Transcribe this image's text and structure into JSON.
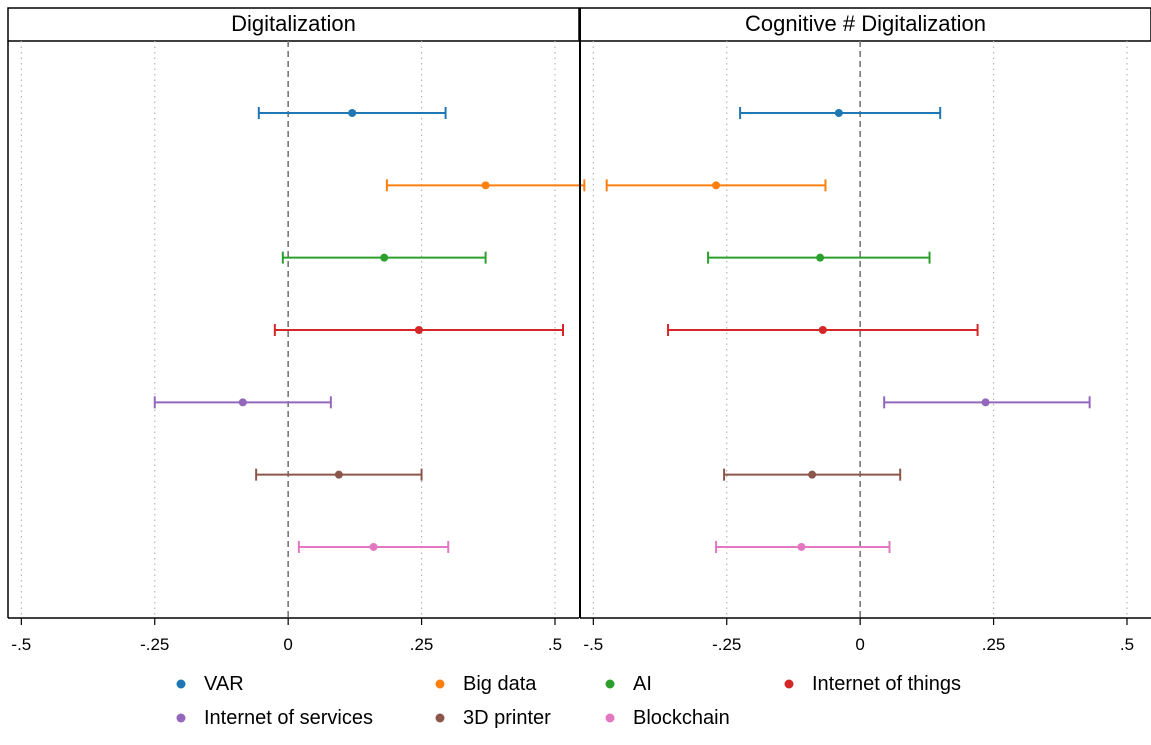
{
  "chart_data": {
    "type": "scatter",
    "subtype": "coefficient-plot-with-confidence-intervals",
    "orientation": "horizontal",
    "x_ticks": [
      -0.5,
      -0.25,
      0,
      0.25,
      0.5
    ],
    "x_tick_labels": [
      "-.5",
      "-.25",
      "0",
      ".25",
      ".5"
    ],
    "xlim": [
      -0.525,
      0.545
    ],
    "reference_line": 0,
    "grid": "vertical-dotted",
    "legend_position": "bottom",
    "legend": [
      {
        "name": "VAR",
        "color": "#1f77b4"
      },
      {
        "name": "Big data",
        "color": "#ff7f0e"
      },
      {
        "name": "AI",
        "color": "#2ca02c"
      },
      {
        "name": "Internet of things",
        "color": "#d62728"
      },
      {
        "name": "Internet of services",
        "color": "#9467bd"
      },
      {
        "name": "3D printer",
        "color": "#8c564b"
      },
      {
        "name": "Blockchain",
        "color": "#e377c2"
      }
    ],
    "panels": [
      {
        "title": "Digitalization",
        "series": [
          {
            "name": "VAR",
            "estimate": 0.12,
            "ci_low": -0.055,
            "ci_high": 0.295
          },
          {
            "name": "Big data",
            "estimate": 0.37,
            "ci_low": 0.185,
            "ci_high": 0.555
          },
          {
            "name": "AI",
            "estimate": 0.18,
            "ci_low": -0.01,
            "ci_high": 0.37
          },
          {
            "name": "Internet of things",
            "estimate": 0.245,
            "ci_low": -0.025,
            "ci_high": 0.515
          },
          {
            "name": "Internet of services",
            "estimate": -0.085,
            "ci_low": -0.25,
            "ci_high": 0.08
          },
          {
            "name": "3D printer",
            "estimate": 0.095,
            "ci_low": -0.06,
            "ci_high": 0.25
          },
          {
            "name": "Blockchain",
            "estimate": 0.16,
            "ci_low": 0.02,
            "ci_high": 0.3
          }
        ]
      },
      {
        "title": "Cognitive # Digitalization",
        "series": [
          {
            "name": "VAR",
            "estimate": -0.04,
            "ci_low": -0.225,
            "ci_high": 0.15
          },
          {
            "name": "Big data",
            "estimate": -0.27,
            "ci_low": -0.475,
            "ci_high": -0.065
          },
          {
            "name": "AI",
            "estimate": -0.075,
            "ci_low": -0.285,
            "ci_high": 0.13
          },
          {
            "name": "Internet of things",
            "estimate": -0.07,
            "ci_low": -0.36,
            "ci_high": 0.22
          },
          {
            "name": "Internet of services",
            "estimate": 0.235,
            "ci_low": 0.045,
            "ci_high": 0.43
          },
          {
            "name": "3D printer",
            "estimate": -0.09,
            "ci_low": -0.255,
            "ci_high": 0.075
          },
          {
            "name": "Blockchain",
            "estimate": -0.11,
            "ci_low": -0.27,
            "ci_high": 0.055
          }
        ]
      }
    ]
  }
}
